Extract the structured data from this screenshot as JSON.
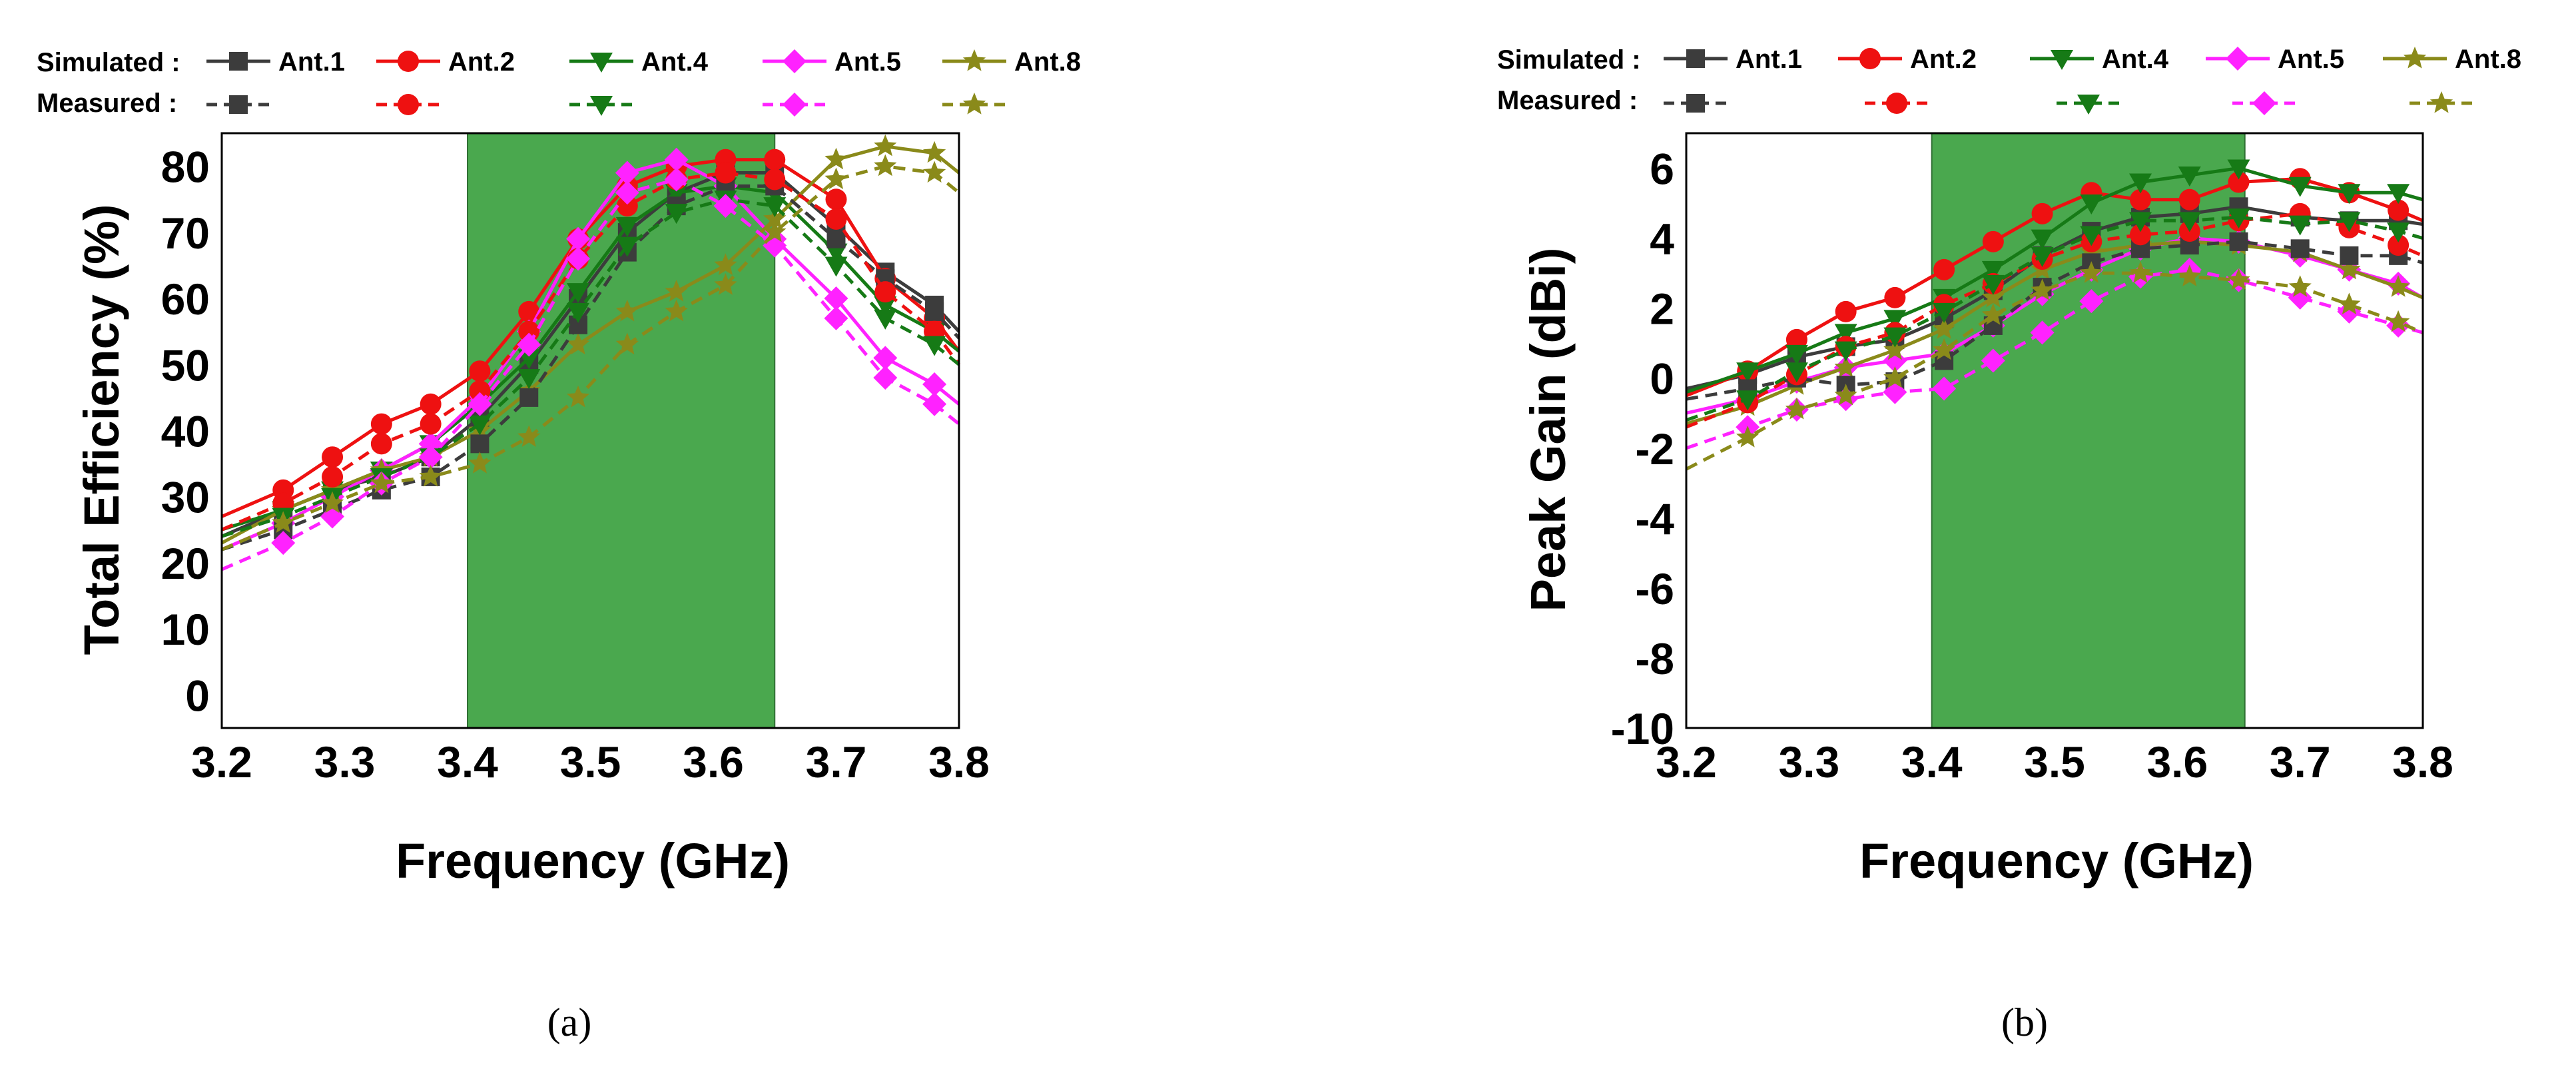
{
  "chart_data": [
    {
      "type": "line",
      "panel_label": "(a)",
      "xlabel": "Frequency (GHz)",
      "ylabel": "Total Efficiency (%)",
      "xlim": [
        3.2,
        3.8
      ],
      "ylim": [
        -5,
        85
      ],
      "xticks": [
        "3.2",
        "3.3",
        "3.4",
        "3.5",
        "3.6",
        "3.7",
        "3.8"
      ],
      "yticks": [
        "0",
        "10",
        "20",
        "30",
        "40",
        "50",
        "60",
        "70",
        "80"
      ],
      "highlight_band": [
        3.4,
        3.65
      ],
      "band_color": "#4aa84e",
      "legend": {
        "simulated_label": "Simulated :",
        "measured_label": "Measured :",
        "entries": [
          "Ant.1",
          "Ant.2",
          "Ant.4",
          "Ant.5",
          "Ant.8"
        ]
      },
      "x": [
        3.2,
        3.25,
        3.29,
        3.33,
        3.37,
        3.41,
        3.45,
        3.49,
        3.53,
        3.57,
        3.61,
        3.65,
        3.7,
        3.74,
        3.78,
        3.8
      ],
      "series": [
        {
          "name": "Ant.1",
          "kind": "Simulated",
          "color": "#3c3c3c",
          "marker": "square",
          "values": [
            24,
            28,
            31,
            33,
            36,
            42,
            50,
            60,
            70,
            76,
            79,
            79,
            71,
            64,
            59,
            55
          ]
        },
        {
          "name": "Ant.2",
          "kind": "Simulated",
          "color": "#ee1111",
          "marker": "circle",
          "values": [
            27,
            31,
            36,
            41,
            44,
            49,
            58,
            69,
            77,
            80,
            81,
            81,
            75,
            63,
            57,
            52
          ]
        },
        {
          "name": "Ant.4",
          "kind": "Simulated",
          "color": "#167a16",
          "marker": "triangle",
          "values": [
            25,
            28,
            31,
            34,
            38,
            44,
            51,
            61,
            71,
            76,
            77,
            76,
            67,
            59,
            55,
            52
          ]
        },
        {
          "name": "Ant.5",
          "kind": "Simulated",
          "color": "#ff22ff",
          "marker": "diamond",
          "values": [
            22,
            26,
            30,
            34,
            38,
            45,
            55,
            69,
            79,
            81,
            77,
            69,
            60,
            51,
            47,
            44
          ]
        },
        {
          "name": "Ant.8",
          "kind": "Simulated",
          "color": "#8a8a1a",
          "marker": "star",
          "values": [
            23,
            28,
            31,
            34,
            36,
            40,
            46,
            53,
            58,
            61,
            65,
            72,
            81,
            83,
            82,
            79
          ]
        },
        {
          "name": "Ant.1",
          "kind": "Measured",
          "color": "#3c3c3c",
          "marker": "square",
          "values": [
            22,
            25,
            28,
            31,
            33,
            38,
            45,
            56,
            67,
            74,
            77,
            77,
            69,
            63,
            58,
            54
          ]
        },
        {
          "name": "Ant.2",
          "kind": "Measured",
          "color": "#ee1111",
          "marker": "circle",
          "values": [
            25,
            29,
            33,
            38,
            41,
            46,
            55,
            66,
            74,
            78,
            79,
            78,
            72,
            61,
            55,
            50
          ]
        },
        {
          "name": "Ant.4",
          "kind": "Measured",
          "color": "#167a16",
          "marker": "triangle",
          "values": [
            24,
            27,
            30,
            33,
            36,
            41,
            48,
            58,
            68,
            73,
            75,
            74,
            65,
            57,
            53,
            50
          ]
        },
        {
          "name": "Ant.5",
          "kind": "Measured",
          "color": "#ff22ff",
          "marker": "diamond",
          "values": [
            19,
            23,
            27,
            32,
            36,
            44,
            53,
            66,
            76,
            78,
            74,
            68,
            57,
            48,
            44,
            41
          ]
        },
        {
          "name": "Ant.8",
          "kind": "Measured",
          "color": "#8a8a1a",
          "marker": "star",
          "values": [
            22,
            26,
            29,
            32,
            33,
            35,
            39,
            45,
            53,
            58,
            62,
            70,
            78,
            80,
            79,
            76
          ]
        }
      ]
    },
    {
      "type": "line",
      "panel_label": "(b)",
      "xlabel": "Frequency (GHz)",
      "ylabel": "Peak Gain (dBi)",
      "xlim": [
        3.2,
        3.8
      ],
      "ylim": [
        -10,
        7
      ],
      "xticks": [
        "3.2",
        "3.3",
        "3.4",
        "3.5",
        "3.6",
        "3.7",
        "3.8"
      ],
      "yticks": [
        "-10",
        "-8",
        "-6",
        "-4",
        "-2",
        "0",
        "2",
        "4",
        "6"
      ],
      "highlight_band": [
        3.4,
        3.655
      ],
      "band_color": "#4aa84e",
      "legend": {
        "simulated_label": "Simulated :",
        "measured_label": "Measured :",
        "entries": [
          "Ant.1",
          "Ant.2",
          "Ant.4",
          "Ant.5",
          "Ant.8"
        ]
      },
      "x": [
        3.2,
        3.25,
        3.29,
        3.33,
        3.37,
        3.41,
        3.45,
        3.49,
        3.53,
        3.57,
        3.61,
        3.65,
        3.7,
        3.74,
        3.78,
        3.8
      ],
      "series": [
        {
          "name": "Ant.1",
          "kind": "Simulated",
          "color": "#3c3c3c",
          "marker": "square",
          "values": [
            -0.3,
            0.1,
            0.6,
            0.9,
            1.1,
            1.7,
            2.5,
            3.5,
            4.2,
            4.6,
            4.7,
            4.9,
            4.6,
            4.5,
            4.5,
            4.4
          ]
        },
        {
          "name": "Ant.2",
          "kind": "Simulated",
          "color": "#ee1111",
          "marker": "circle",
          "values": [
            -0.5,
            0.2,
            1.1,
            1.9,
            2.3,
            3.1,
            3.9,
            4.7,
            5.3,
            5.1,
            5.1,
            5.6,
            5.7,
            5.3,
            4.8,
            4.5
          ]
        },
        {
          "name": "Ant.4",
          "kind": "Simulated",
          "color": "#167a16",
          "marker": "triangle",
          "values": [
            -0.4,
            0.2,
            0.7,
            1.3,
            1.7,
            2.3,
            3.1,
            4.0,
            5.0,
            5.6,
            5.8,
            6.0,
            5.5,
            5.3,
            5.3,
            5.1
          ]
        },
        {
          "name": "Ant.5",
          "kind": "Simulated",
          "color": "#ff22ff",
          "marker": "diamond",
          "values": [
            -1.0,
            -0.6,
            -0.1,
            0.3,
            0.5,
            0.7,
            1.5,
            2.4,
            3.1,
            3.7,
            4.0,
            3.9,
            3.5,
            3.1,
            2.7,
            2.3
          ]
        },
        {
          "name": "Ant.8",
          "kind": "Simulated",
          "color": "#8a8a1a",
          "marker": "star",
          "values": [
            -1.3,
            -0.8,
            -0.2,
            0.3,
            0.8,
            1.4,
            2.3,
            3.1,
            3.6,
            3.8,
            3.9,
            3.8,
            3.6,
            3.1,
            2.6,
            2.3
          ]
        },
        {
          "name": "Ant.1",
          "kind": "Measured",
          "color": "#3c3c3c",
          "marker": "square",
          "values": [
            -0.6,
            -0.3,
            0.0,
            -0.2,
            -0.1,
            0.5,
            1.5,
            2.6,
            3.3,
            3.7,
            3.8,
            3.9,
            3.7,
            3.5,
            3.5,
            3.3
          ]
        },
        {
          "name": "Ant.2",
          "kind": "Measured",
          "color": "#ee1111",
          "marker": "circle",
          "values": [
            -1.4,
            -0.7,
            0.1,
            0.9,
            1.3,
            2.1,
            2.7,
            3.4,
            3.9,
            4.1,
            4.2,
            4.5,
            4.7,
            4.3,
            3.8,
            3.5
          ]
        },
        {
          "name": "Ant.4",
          "kind": "Measured",
          "color": "#167a16",
          "marker": "triangle",
          "values": [
            -1.2,
            -0.6,
            0.2,
            0.8,
            1.2,
            1.9,
            2.7,
            3.5,
            4.1,
            4.5,
            4.5,
            4.6,
            4.4,
            4.5,
            4.2,
            4.0
          ]
        },
        {
          "name": "Ant.5",
          "kind": "Measured",
          "color": "#ff22ff",
          "marker": "diamond",
          "values": [
            -2.0,
            -1.4,
            -0.9,
            -0.6,
            -0.4,
            -0.3,
            0.5,
            1.3,
            2.2,
            2.9,
            3.1,
            2.8,
            2.3,
            1.9,
            1.5,
            1.3
          ]
        },
        {
          "name": "Ant.8",
          "kind": "Measured",
          "color": "#8a8a1a",
          "marker": "star",
          "values": [
            -2.6,
            -1.7,
            -0.9,
            -0.5,
            0.0,
            0.8,
            1.8,
            2.5,
            3.0,
            3.0,
            2.9,
            2.8,
            2.6,
            2.1,
            1.6,
            1.3
          ]
        }
      ]
    }
  ]
}
